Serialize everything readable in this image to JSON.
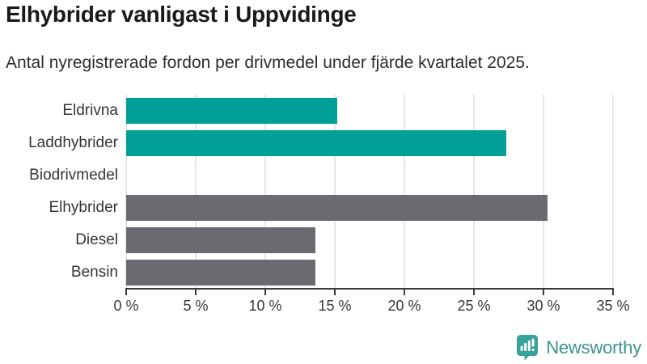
{
  "title": "Elhybrider vanligast i Uppvidinge",
  "subtitle": "Antal nyregistrerade fordon per drivmedel under fjärde kvartalet 2025.",
  "chart_data": {
    "type": "bar",
    "orientation": "horizontal",
    "categories": [
      "Eldrivna",
      "Laddhybrider",
      "Biodrivmedel",
      "Elhybrider",
      "Diesel",
      "Bensin"
    ],
    "values": [
      15.2,
      27.3,
      0,
      30.3,
      13.6,
      13.6
    ],
    "unit": "%",
    "xlim": [
      0,
      35
    ],
    "x_ticks": [
      0,
      5,
      10,
      15,
      20,
      25,
      30,
      35
    ],
    "x_tick_labels": [
      "0 %",
      "5 %",
      "10 %",
      "15 %",
      "20 %",
      "25 %",
      "30 %",
      "35 %"
    ],
    "grid": true,
    "legend": false,
    "bar_colors": [
      "#00a096",
      "#00a096",
      "#6b6a70",
      "#6b6a70",
      "#6b6a70",
      "#6b6a70"
    ],
    "title": "Elhybrider vanligast i Uppvidinge",
    "xlabel": "",
    "ylabel": ""
  },
  "colors": {
    "teal_bar": "#00a096",
    "gray_bar": "#6b6a70",
    "gridline": "#e6e6e6",
    "axis": "#3b3b40",
    "title_text": "#191919",
    "logo_teal": "#3e948d"
  },
  "footer": {
    "brand": "Newsworthy"
  }
}
